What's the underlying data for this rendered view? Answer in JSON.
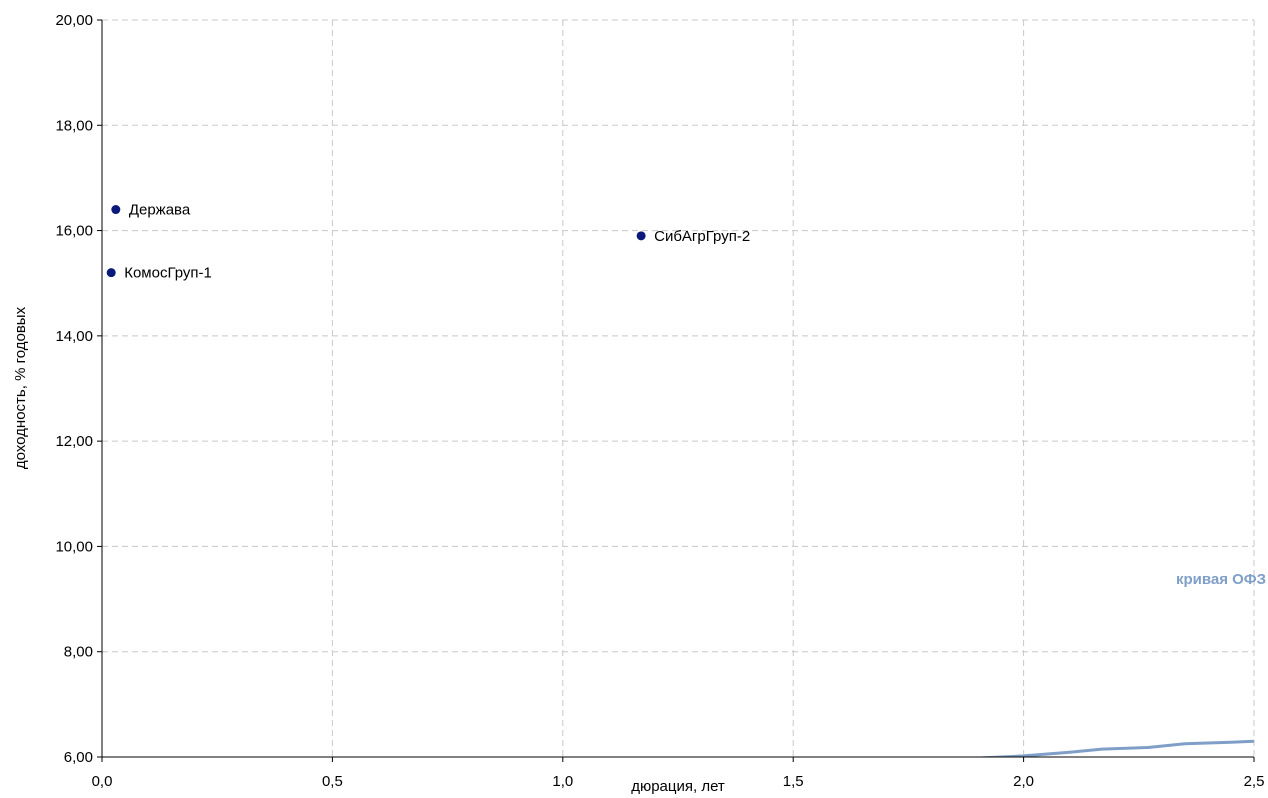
{
  "chart_data": {
    "type": "scatter",
    "xlabel": "дюрация, лет",
    "ylabel": "доходность, % годовых",
    "xlim": [
      0,
      2.5
    ],
    "ylim": [
      6,
      20
    ],
    "x_ticks": [
      0,
      0.5,
      1.0,
      1.5,
      2.0,
      2.5
    ],
    "x_tick_labels": [
      "0,0",
      "0,5",
      "1,0",
      "1,5",
      "2,0",
      "2,5"
    ],
    "y_ticks": [
      6,
      8,
      10,
      12,
      14,
      16,
      18,
      20
    ],
    "y_tick_labels": [
      "6,00",
      "8,00",
      "10,00",
      "12,00",
      "14,00",
      "16,00",
      "18,00",
      "20,00"
    ],
    "grid": true,
    "points": [
      {
        "label": "Держава",
        "x": 0.03,
        "y": 16.4
      },
      {
        "label": "КомосГруп-1",
        "x": 0.02,
        "y": 15.2
      },
      {
        "label": "СибАгрГруп-2",
        "x": 1.17,
        "y": 15.9
      }
    ],
    "curve": {
      "name": "кривая ОФЗ",
      "x": [
        1.9,
        2.0,
        2.1,
        2.17,
        2.27,
        2.35,
        2.45,
        2.5
      ],
      "y": [
        5.98,
        6.02,
        6.09,
        6.15,
        6.18,
        6.25,
        6.28,
        6.3
      ]
    },
    "colors": {
      "points": "#0b1a7a",
      "curve": "#7f9fc8",
      "grid": "#c8c8c8",
      "axis": "#000000"
    }
  }
}
